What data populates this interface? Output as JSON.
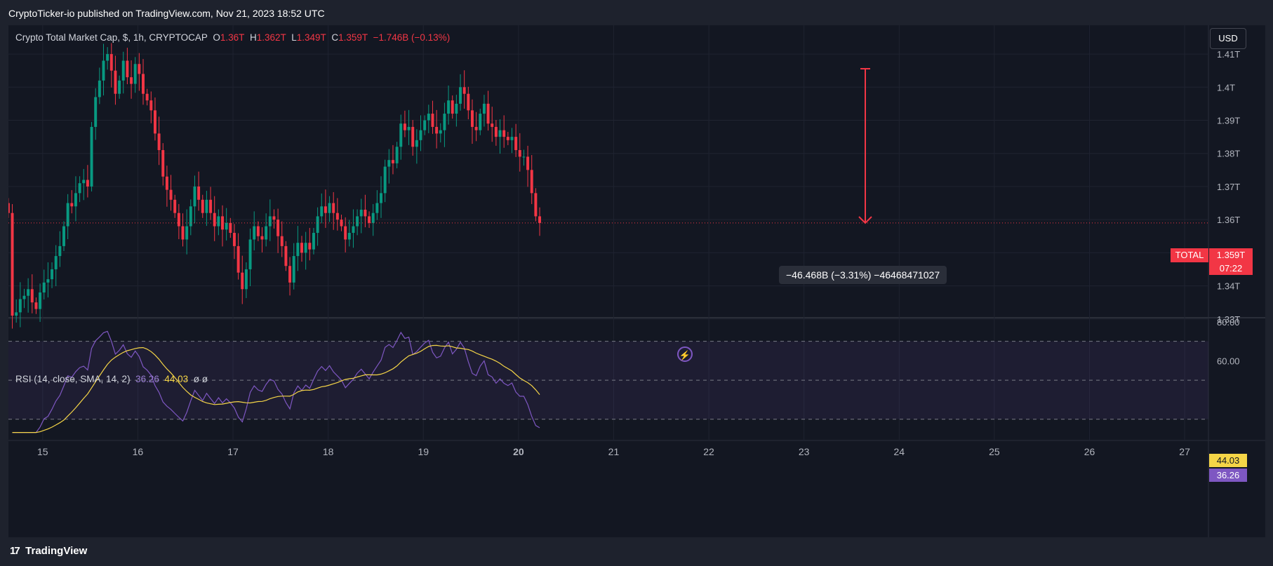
{
  "header": {
    "publisher": "CryptoTicker-io published on TradingView.com, Nov 21, 2023 18:52 UTC"
  },
  "legend": {
    "symbol": "Crypto Total Market Cap, $, 1h, CRYPTOCAP",
    "o_label": "O",
    "o_val": "1.36T",
    "h_label": "H",
    "h_val": "1.362T",
    "l_label": "L",
    "l_val": "1.349T",
    "c_label": "C",
    "c_val": "1.359T",
    "change": "−1.746B (−0.13%)"
  },
  "currency_button": "USD",
  "rsi_legend": {
    "label": "RSI (14, close, SMA, 14, 2)",
    "rsi": "36.26",
    "sma": "44.03",
    "extra": "ø  ø"
  },
  "measure_label": "−46.468B (−3.31%) −46468471027",
  "price_labels": {
    "symbol": "TOTAL",
    "price": "1.359T",
    "countdown": "07:22"
  },
  "rsi_labels": {
    "sma": "44.03",
    "rsi": "36.26"
  },
  "footer": {
    "logo": "TradingView",
    "logo_mark": "17"
  },
  "colors": {
    "up": "#089981",
    "down": "#f23645",
    "rsi": "#7e57c2",
    "rsi_sma": "#f5d547",
    "bg": "#131722"
  },
  "chart_data": [
    {
      "type": "candlestick",
      "title": "Crypto Total Market Cap, $, 1h, CRYPTOCAP",
      "y_ticks": [
        "1.41T",
        "1.4T",
        "1.39T",
        "1.38T",
        "1.37T",
        "1.36T",
        "1.35T",
        "1.34T",
        "1.33T"
      ],
      "y_tick_values": [
        1.41,
        1.4,
        1.39,
        1.38,
        1.37,
        1.36,
        1.35,
        1.34,
        1.33
      ],
      "ylim": [
        1.3308,
        1.4187
      ],
      "x_ticks": [
        "15",
        "16",
        "17",
        "18",
        "19",
        "20",
        "21",
        "22",
        "23",
        "24",
        "25",
        "26",
        "27"
      ],
      "x_tick_days": [
        15,
        16,
        17,
        18,
        19,
        20,
        21,
        22,
        23,
        24,
        25,
        26,
        27
      ],
      "xlim_days": [
        14.64,
        27.25
      ],
      "interval_hours": 1,
      "closes": [
        1.362,
        1.331,
        1.332,
        1.336,
        1.337,
        1.339,
        1.335,
        1.333,
        1.338,
        1.341,
        1.342,
        1.345,
        1.349,
        1.352,
        1.358,
        1.365,
        1.364,
        1.368,
        1.371,
        1.372,
        1.37,
        1.388,
        1.397,
        1.402,
        1.408,
        1.41,
        1.405,
        1.398,
        1.402,
        1.408,
        1.403,
        1.401,
        1.407,
        1.404,
        1.398,
        1.396,
        1.393,
        1.386,
        1.381,
        1.373,
        1.369,
        1.366,
        1.362,
        1.358,
        1.354,
        1.358,
        1.364,
        1.37,
        1.366,
        1.362,
        1.366,
        1.362,
        1.358,
        1.361,
        1.357,
        1.359,
        1.356,
        1.352,
        1.344,
        1.339,
        1.345,
        1.354,
        1.358,
        1.355,
        1.354,
        1.358,
        1.361,
        1.36,
        1.355,
        1.352,
        1.346,
        1.341,
        1.349,
        1.353,
        1.35,
        1.353,
        1.351,
        1.356,
        1.361,
        1.364,
        1.362,
        1.365,
        1.362,
        1.36,
        1.358,
        1.354,
        1.356,
        1.358,
        1.361,
        1.363,
        1.361,
        1.359,
        1.362,
        1.365,
        1.368,
        1.376,
        1.378,
        1.377,
        1.382,
        1.389,
        1.387,
        1.388,
        1.382,
        1.384,
        1.387,
        1.39,
        1.392,
        1.388,
        1.386,
        1.387,
        1.392,
        1.396,
        1.392,
        1.395,
        1.4,
        1.398,
        1.393,
        1.388,
        1.387,
        1.392,
        1.395,
        1.389,
        1.388,
        1.385,
        1.387,
        1.385,
        1.384,
        1.385,
        1.381,
        1.379,
        1.379,
        1.375,
        1.368,
        1.361,
        1.359
      ],
      "colored_by": "close vs open (green up, red down)"
    },
    {
      "type": "line",
      "title": "RSI (14, close, SMA, 14, 2)",
      "y_ticks": [
        "80.00",
        "60.00"
      ],
      "y_tick_values": [
        80,
        60
      ],
      "bands": [
        70,
        50,
        30
      ],
      "ylim": [
        22.7,
        81
      ],
      "series": [
        {
          "name": "RSI",
          "last": 36.26
        },
        {
          "name": "SMA",
          "last": 44.03
        }
      ]
    }
  ]
}
